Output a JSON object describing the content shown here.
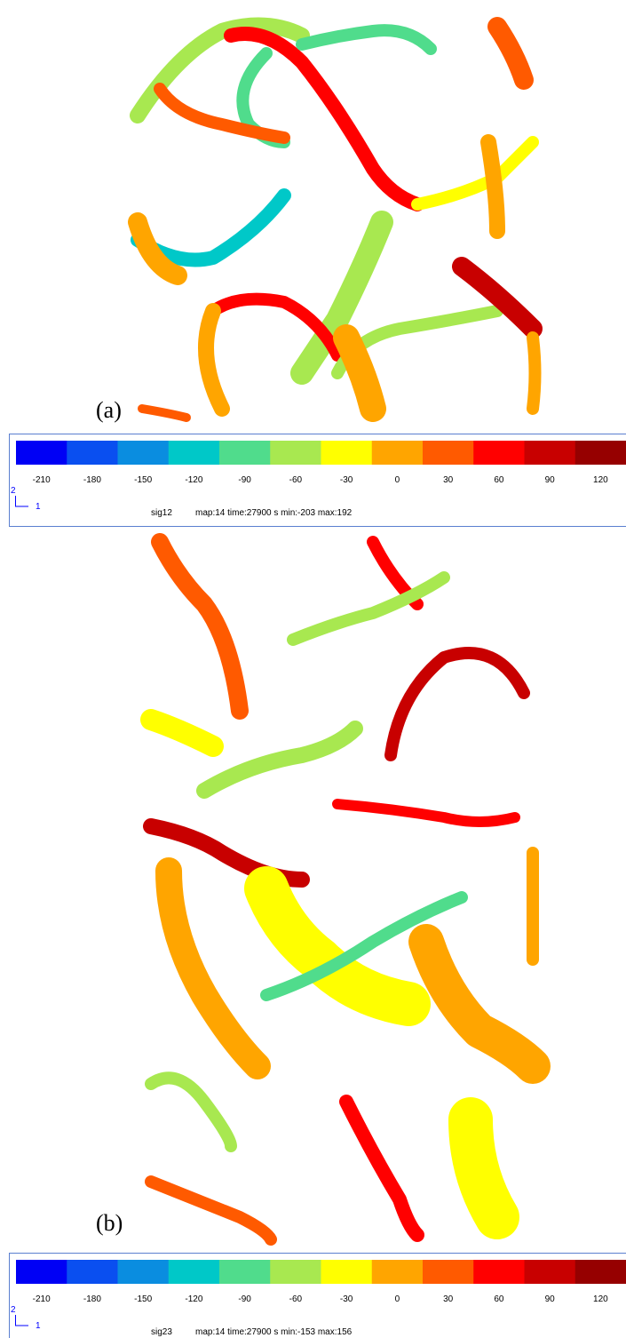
{
  "colors": [
    "#0000f5",
    "#0a4ff0",
    "#0a8de0",
    "#00c8c8",
    "#50dc8c",
    "#a8e850",
    "#ffff00",
    "#ffa500",
    "#ff5a00",
    "#ff0000",
    "#c80000",
    "#960000"
  ],
  "panels": [
    {
      "label": "(a)",
      "ticks": [
        -210,
        -180,
        -150,
        -120,
        -90,
        -60,
        -30,
        0,
        30,
        60,
        90,
        120
      ],
      "axis_y": "2",
      "axis_x": "1",
      "field": "sig12",
      "info": "map:14 time:27900 s min:-203 max:192"
    },
    {
      "label": "(b)",
      "ticks": [
        -210,
        -180,
        -150,
        -120,
        -90,
        -60,
        -30,
        0,
        30,
        60,
        90,
        120
      ],
      "axis_y": "2",
      "axis_x": "1",
      "field": "sig23",
      "info": "map:14 time:27900 s min:-153 max:156"
    }
  ]
}
